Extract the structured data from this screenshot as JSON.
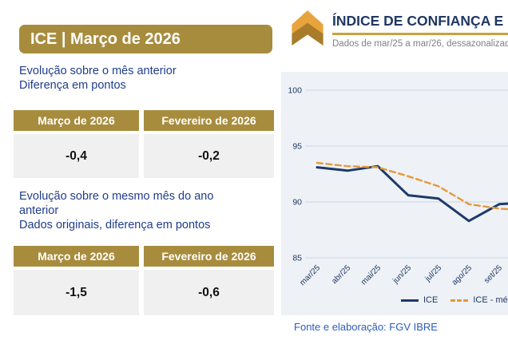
{
  "left_panel": {
    "header": "ICE | Março de 2026",
    "section1": {
      "description": "Evolução sobre o mês anterior\nDiferença em pontos",
      "table": {
        "columns": [
          "Março de 2026",
          "Fevereiro de 2026"
        ],
        "values": [
          "-0,4",
          "-0,2"
        ]
      }
    },
    "section2": {
      "description": "Evolução sobre o mesmo mês do ano\nanterior\nDados originais, diferença em pontos",
      "table": {
        "columns": [
          "Março de 2026",
          "Fevereiro de 2026"
        ],
        "values": [
          "-1,5",
          "-0,6"
        ]
      }
    }
  },
  "header": {
    "logo_icon": "fgv-sondagem-chevron-icon",
    "title": "ÍNDICE DE CONFIANÇA E",
    "subtitle": "Dados de mar/25 a mar/26, dessazonalizad"
  },
  "chart_data": {
    "type": "line",
    "title": "",
    "xlabel": "",
    "ylabel": "",
    "categories": [
      "mar/25",
      "abr/25",
      "mai/25",
      "jun/25",
      "jul/25",
      "ago/25",
      "set/25"
    ],
    "series": [
      {
        "name": "ICE",
        "style": "solid",
        "color": "#1E3A68",
        "values": [
          93.1,
          92.8,
          93.2,
          90.6,
          90.3,
          88.3,
          89.8
        ],
        "value_at_right_edge": 89.9
      },
      {
        "name": "ICE - mé",
        "style": "dashed",
        "color": "#E39A3B",
        "values": [
          93.5,
          93.2,
          93.1,
          92.3,
          91.4,
          89.8,
          89.4
        ],
        "value_at_right_edge": 89.3
      }
    ],
    "ylim": [
      85,
      100
    ],
    "yticks": [
      85,
      90,
      95,
      100
    ],
    "grid": true,
    "legend_position": "bottom",
    "x_extends_beyond_frame": true
  },
  "footer": {
    "source": "Fonte e elaboração: FGV IBRE"
  },
  "colors": {
    "gold": "#A88C3E",
    "gold_rule": "#C9A23C",
    "navy": "#1F3864",
    "blue_text": "#203D8C",
    "source_blue": "#2B5DBA",
    "cell_gray": "#F0F0F0",
    "chart_bg": "#EEF1F6",
    "gridline": "#C9D8EA",
    "line_navy": "#1E3A68",
    "line_orange": "#E39A3B",
    "logo_light": "#E8A33C",
    "logo_dark": "#A97C2B"
  }
}
